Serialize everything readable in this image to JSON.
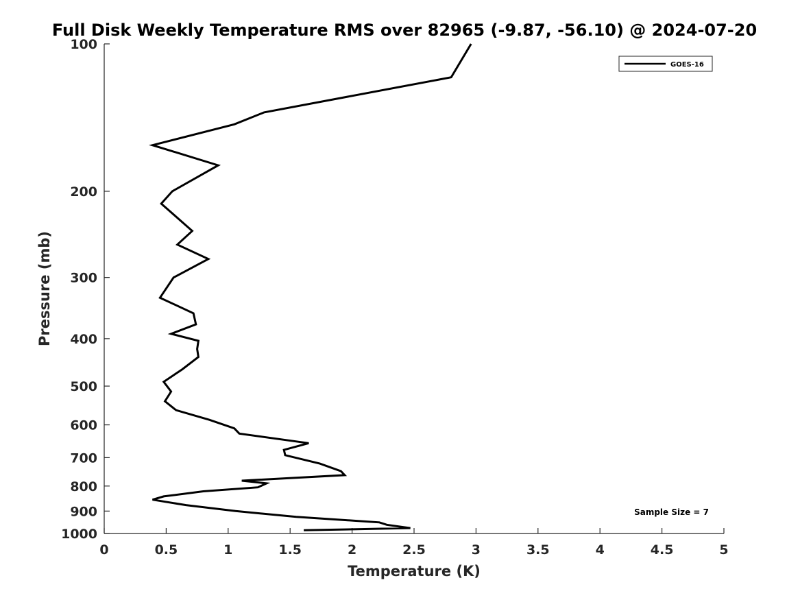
{
  "chart_data": {
    "type": "line",
    "title": "Full Disk Weekly Temperature RMS over 82965 (-9.87, -56.10) @ 2024-07-20",
    "xlabel": "Temperature (K)",
    "ylabel": "Pressure (mb)",
    "xlim": [
      0,
      5
    ],
    "ylim": [
      100,
      1000
    ],
    "y_scale": "log",
    "y_reversed": true,
    "x_ticks": [
      "0",
      "0.5",
      "1",
      "1.5",
      "2",
      "2.5",
      "3",
      "3.5",
      "4",
      "4.5",
      "5"
    ],
    "y_ticks": [
      "100",
      "200",
      "300",
      "400",
      "500",
      "600",
      "700",
      "800",
      "900",
      "1000"
    ],
    "grid": false,
    "legend_position": "top-right",
    "series": [
      {
        "name": "GOES-16",
        "color": "#000000",
        "x": [
          2.96,
          2.8,
          1.29,
          1.05,
          0.39,
          0.92,
          0.55,
          0.46,
          0.71,
          0.59,
          0.84,
          0.56,
          0.45,
          0.72,
          0.74,
          0.54,
          0.76,
          0.75,
          0.76,
          0.63,
          0.48,
          0.54,
          0.49,
          0.58,
          0.85,
          1.05,
          1.09,
          1.65,
          1.45,
          1.46,
          1.74,
          1.91,
          1.94,
          1.11,
          1.31,
          1.24,
          0.8,
          0.48,
          0.39,
          0.66,
          1.06,
          1.55,
          2.22,
          2.28,
          2.47,
          1.61
        ],
        "y": [
          100,
          117,
          138,
          146,
          161,
          177,
          200,
          212,
          241,
          257,
          275,
          300,
          330,
          355,
          374,
          391,
          404,
          420,
          436,
          462,
          490,
          513,
          537,
          560,
          586,
          610,
          625,
          654,
          675,
          692,
          720,
          746,
          760,
          780,
          790,
          805,
          820,
          840,
          853,
          875,
          900,
          925,
          949,
          960,
          975,
          985
        ]
      }
    ],
    "annotations": [
      "Sample Size = 7"
    ]
  }
}
